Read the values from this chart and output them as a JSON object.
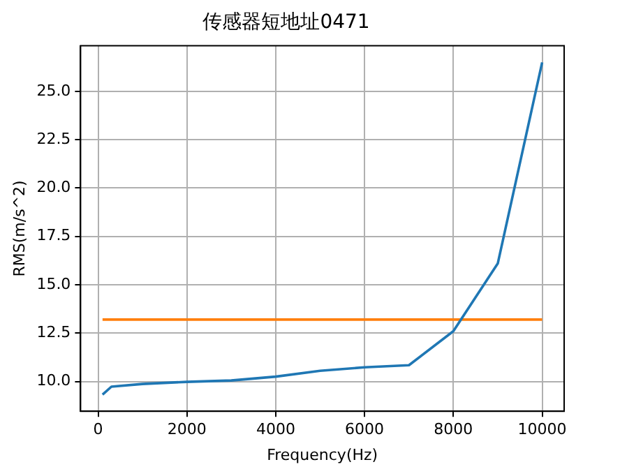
{
  "chart_data": {
    "type": "line",
    "title": "传感器短地址0471",
    "xlabel": "Frequency(Hz)",
    "ylabel": "RMS(m/s^2)",
    "series": [
      {
        "color": "#1f77b4",
        "x": [
          100,
          300,
          1000,
          2000,
          3000,
          4000,
          5000,
          6000,
          7000,
          8000,
          9000,
          10000
        ],
        "values": [
          9.32,
          9.73,
          9.87,
          9.98,
          10.05,
          10.25,
          10.55,
          10.73,
          10.84,
          12.6,
          16.1,
          26.5
        ]
      },
      {
        "color": "#ff7f0e",
        "x": [
          100,
          10000
        ],
        "values": [
          13.2,
          13.2
        ]
      }
    ],
    "xlim": [
      -395,
      10495
    ],
    "ylim": [
      8.46,
      27.36
    ],
    "xticks": [
      0,
      2000,
      4000,
      6000,
      8000,
      10000
    ],
    "yticks": [
      {
        "value": 10,
        "label": "10.0"
      },
      {
        "value": 12.5,
        "label": "12.5"
      },
      {
        "value": 15,
        "label": "15.0"
      },
      {
        "value": 17.5,
        "label": "17.5"
      },
      {
        "value": 20,
        "label": "20.0"
      },
      {
        "value": 22.5,
        "label": "22.5"
      },
      {
        "value": 25,
        "label": "25.0"
      }
    ],
    "grid": true
  }
}
